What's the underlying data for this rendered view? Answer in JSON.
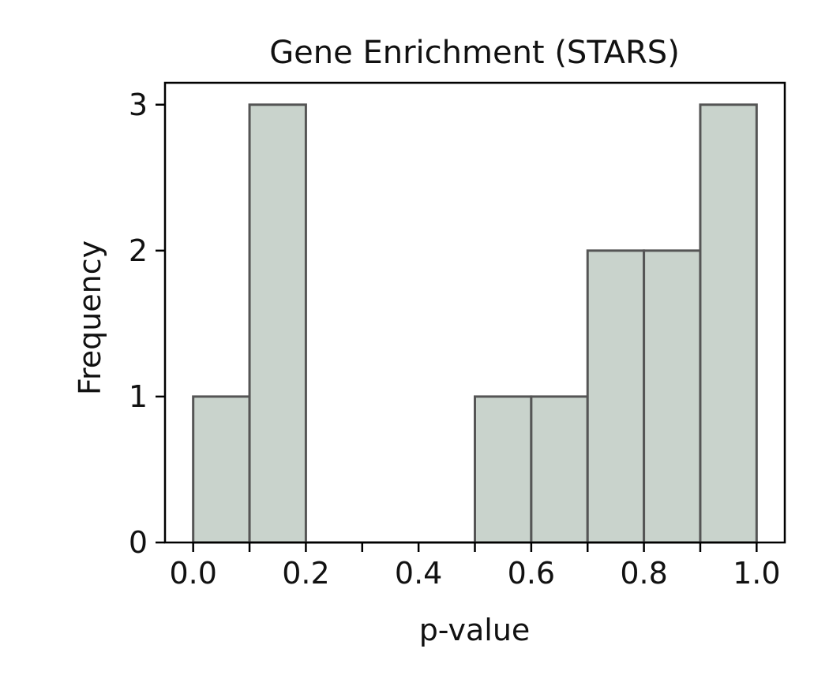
{
  "chart_data": {
    "type": "bar",
    "title": "Gene Enrichment (STARS)",
    "xlabel": "p-value",
    "ylabel": "Frequency",
    "bins": [
      {
        "x0": 0.0,
        "x1": 0.1,
        "count": 1
      },
      {
        "x0": 0.1,
        "x1": 0.2,
        "count": 3
      },
      {
        "x0": 0.2,
        "x1": 0.3,
        "count": 0
      },
      {
        "x0": 0.3,
        "x1": 0.4,
        "count": 0
      },
      {
        "x0": 0.4,
        "x1": 0.5,
        "count": 0
      },
      {
        "x0": 0.5,
        "x1": 0.6,
        "count": 1
      },
      {
        "x0": 0.6,
        "x1": 0.7,
        "count": 1
      },
      {
        "x0": 0.7,
        "x1": 0.8,
        "count": 2
      },
      {
        "x0": 0.8,
        "x1": 0.9,
        "count": 2
      },
      {
        "x0": 0.9,
        "x1": 1.0,
        "count": 3
      }
    ],
    "xlim": [
      -0.05,
      1.05
    ],
    "ylim": [
      0,
      3.15
    ],
    "xticks": [
      0.0,
      0.2,
      0.4,
      0.6,
      0.8,
      1.0
    ],
    "xtick_labels": [
      "0.0",
      "0.2",
      "0.4",
      "0.6",
      "0.8",
      "1.0"
    ],
    "minor_xticks": [
      0.1,
      0.3,
      0.5,
      0.7,
      0.9
    ],
    "yticks": [
      0,
      1,
      2,
      3
    ],
    "ytick_labels": [
      "0",
      "1",
      "2",
      "3"
    ],
    "grid": false,
    "colors": {
      "bar_fill": "#c9d3cc",
      "bar_edge": "#555555",
      "axes": "#000000"
    }
  }
}
